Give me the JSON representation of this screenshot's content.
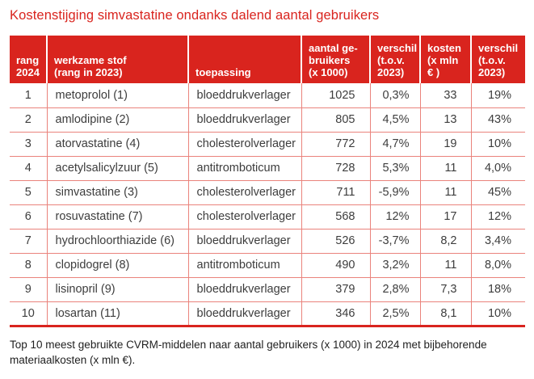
{
  "title": "Kostenstijging simvastatine ondanks dalend aantal gebruikers",
  "accent_color": "#d9241e",
  "grid_color": "#ea837c",
  "table": {
    "columns": [
      {
        "key": "rang",
        "label": "rang\n2024"
      },
      {
        "key": "stof",
        "label": "werkzame stof\n(rang in 2023)"
      },
      {
        "key": "toepassing",
        "label": "toepassing"
      },
      {
        "key": "aantal",
        "label": "aantal ge-\nbruikers\n(x 1000)"
      },
      {
        "key": "verschil_gebruikers",
        "label": "verschil\n(t.o.v.\n2023)"
      },
      {
        "key": "kosten",
        "label": "kosten\n(x mln\n€ )"
      },
      {
        "key": "verschil_kosten",
        "label": "verschil\n(t.o.v.\n2023)"
      }
    ],
    "rows": [
      {
        "rang": "1",
        "stof": "metoprolol (1)",
        "toepassing": "bloeddrukverlager",
        "aantal": "1025",
        "verschil_gebruikers": "0,3%",
        "kosten": "33",
        "verschil_kosten": "19%"
      },
      {
        "rang": "2",
        "stof": "amlodipine (2)",
        "toepassing": "bloeddrukverlager",
        "aantal": "805",
        "verschil_gebruikers": "4,5%",
        "kosten": "13",
        "verschil_kosten": "43%"
      },
      {
        "rang": "3",
        "stof": "atorvastatine (4)",
        "toepassing": "cholesterolverlager",
        "aantal": "772",
        "verschil_gebruikers": "4,7%",
        "kosten": "19",
        "verschil_kosten": "10%"
      },
      {
        "rang": "4",
        "stof": "acetylsalicylzuur (5)",
        "toepassing": "antitromboticum",
        "aantal": "728",
        "verschil_gebruikers": "5,3%",
        "kosten": "11",
        "verschil_kosten": "4,0%"
      },
      {
        "rang": "5",
        "stof": "simvastatine (3)",
        "toepassing": "cholesterolverlager",
        "aantal": "711",
        "verschil_gebruikers": "-5,9%",
        "kosten": "11",
        "verschil_kosten": "45%"
      },
      {
        "rang": "6",
        "stof": "rosuvastatine (7)",
        "toepassing": "cholesterolverlager",
        "aantal": "568",
        "verschil_gebruikers": "12%",
        "kosten": "17",
        "verschil_kosten": "12%"
      },
      {
        "rang": "7",
        "stof": "hydrochloorthiazide (6)",
        "toepassing": "bloeddrukverlager",
        "aantal": "526",
        "verschil_gebruikers": "-3,7%",
        "kosten": "8,2",
        "verschil_kosten": "3,4%"
      },
      {
        "rang": "8",
        "stof": "clopidogrel (8)",
        "toepassing": "antitromboticum",
        "aantal": "490",
        "verschil_gebruikers": "3,2%",
        "kosten": "11",
        "verschil_kosten": "8,0%"
      },
      {
        "rang": "9",
        "stof": "lisinopril (9)",
        "toepassing": "bloeddrukverlager",
        "aantal": "379",
        "verschil_gebruikers": "2,8%",
        "kosten": "7,3",
        "verschil_kosten": "18%"
      },
      {
        "rang": "10",
        "stof": "losartan (11)",
        "toepassing": "bloeddrukverlager",
        "aantal": "346",
        "verschil_gebruikers": "2,5%",
        "kosten": "8,1",
        "verschil_kosten": "10%"
      }
    ]
  },
  "caption": "Top 10 meest gebruikte CVRM-middelen naar aantal gebruikers (x 1000) in 2024 met bijbehorende\nmateriaalkosten (x mln €)."
}
